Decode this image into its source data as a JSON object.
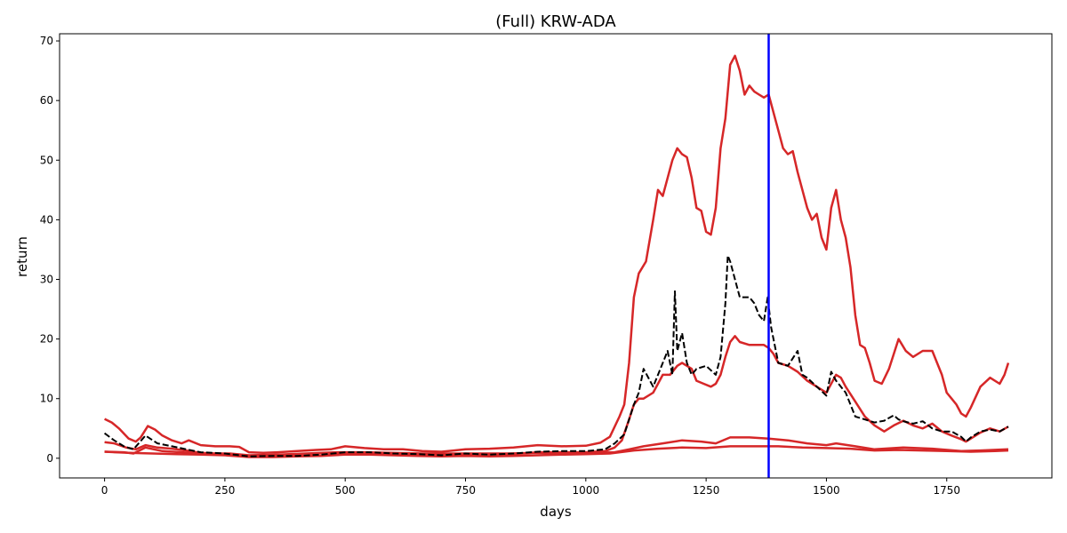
{
  "chart_data": {
    "type": "line",
    "title": "(Full) KRW-ADA",
    "xlabel": "days",
    "ylabel": "return",
    "xlim": [
      -93.5,
      1968.5
    ],
    "ylim": [
      -3.3,
      71.2
    ],
    "xticks": [
      0,
      250,
      500,
      750,
      1000,
      1250,
      1500,
      1750
    ],
    "yticks": [
      0,
      10,
      20,
      30,
      40,
      50,
      60,
      70
    ],
    "grid": false,
    "legend": "none",
    "vline": {
      "x": 1380,
      "color": "#0000ff"
    },
    "series": [
      {
        "style": "dashed",
        "color": "#000000",
        "x": [
          0,
          20,
          40,
          60,
          85,
          110,
          140,
          170,
          200,
          250,
          300,
          350,
          400,
          450,
          500,
          550,
          600,
          650,
          700,
          750,
          800,
          850,
          900,
          950,
          1000,
          1040,
          1060,
          1080,
          1100,
          1110,
          1120,
          1140,
          1160,
          1170,
          1180,
          1185,
          1190,
          1200,
          1210,
          1220,
          1230,
          1250,
          1270,
          1280,
          1290,
          1295,
          1300,
          1310,
          1320,
          1340,
          1350,
          1360,
          1370,
          1378,
          1385,
          1400,
          1420,
          1440,
          1450,
          1460,
          1480,
          1500,
          1510,
          1520,
          1540,
          1560,
          1580,
          1600,
          1620,
          1640,
          1650,
          1660,
          1680,
          1700,
          1720,
          1740,
          1760,
          1780,
          1790,
          1800,
          1820,
          1840,
          1860,
          1878
        ],
        "y": [
          4.2,
          3.0,
          2.0,
          1.5,
          3.8,
          2.5,
          2.0,
          1.5,
          1.0,
          0.8,
          0.3,
          0.4,
          0.4,
          0.6,
          1.0,
          1.0,
          0.8,
          0.7,
          0.5,
          0.8,
          0.6,
          0.8,
          1.1,
          1.2,
          1.2,
          1.5,
          2.5,
          4.0,
          9.0,
          11.0,
          15.0,
          12.0,
          16.0,
          18.0,
          14.0,
          28.0,
          18.0,
          21.0,
          16.0,
          14.0,
          15.0,
          15.5,
          14.0,
          17.0,
          26.0,
          34.0,
          33.0,
          30.0,
          27.0,
          27.0,
          26.0,
          24.0,
          23.0,
          27.0,
          22.0,
          16.0,
          15.5,
          18.0,
          14.0,
          13.5,
          12.0,
          10.5,
          14.5,
          13.0,
          11.0,
          7.0,
          6.5,
          6.0,
          6.3,
          7.2,
          6.5,
          6.2,
          5.8,
          6.2,
          5.0,
          4.5,
          4.5,
          3.6,
          2.8,
          3.5,
          4.5,
          4.8,
          4.5,
          5.3
        ]
      },
      {
        "style": "solid",
        "color": "#d62728",
        "x": [
          0,
          15,
          30,
          50,
          65,
          75,
          90,
          105,
          120,
          140,
          160,
          175,
          200,
          230,
          260,
          280,
          300,
          330,
          360,
          400,
          440,
          470,
          500,
          540,
          580,
          620,
          660,
          700,
          750,
          800,
          850,
          900,
          950,
          1000,
          1030,
          1050,
          1070,
          1080,
          1090,
          1100,
          1110,
          1125,
          1140,
          1150,
          1160,
          1170,
          1180,
          1190,
          1200,
          1210,
          1220,
          1230,
          1240,
          1250,
          1260,
          1270,
          1280,
          1290,
          1300,
          1310,
          1320,
          1330,
          1340,
          1350,
          1360,
          1370,
          1380,
          1390,
          1400,
          1410,
          1420,
          1430,
          1440,
          1450,
          1460,
          1470,
          1480,
          1490,
          1500,
          1510,
          1520,
          1530,
          1540,
          1550,
          1560,
          1570,
          1580,
          1590,
          1600,
          1615,
          1630,
          1650,
          1665,
          1680,
          1700,
          1720,
          1730,
          1740,
          1750,
          1760,
          1770,
          1780,
          1790,
          1800,
          1820,
          1840,
          1860,
          1870,
          1878
        ],
        "y": [
          6.6,
          6.0,
          5.0,
          3.3,
          2.8,
          3.5,
          5.4,
          4.8,
          3.8,
          3.0,
          2.5,
          3.0,
          2.2,
          2.0,
          2.0,
          1.9,
          1.0,
          0.9,
          1.0,
          1.2,
          1.4,
          1.5,
          2.0,
          1.7,
          1.5,
          1.5,
          1.2,
          1.1,
          1.5,
          1.6,
          1.8,
          2.2,
          2.0,
          2.1,
          2.6,
          3.6,
          7.0,
          9.0,
          16.0,
          27.0,
          31.0,
          33.0,
          40.0,
          45.0,
          44.0,
          47.0,
          50.0,
          52.0,
          51.0,
          50.5,
          47.0,
          42.0,
          41.5,
          38.0,
          37.5,
          42.0,
          52.0,
          57.0,
          66.0,
          67.5,
          65.0,
          61.0,
          62.5,
          61.5,
          61.0,
          60.5,
          61.0,
          58.0,
          55.0,
          52.0,
          51.0,
          51.5,
          48.0,
          45.0,
          42.0,
          40.0,
          41.0,
          37.0,
          35.0,
          42.0,
          45.0,
          40.0,
          37.0,
          32.0,
          24.0,
          19.0,
          18.5,
          16.0,
          13.0,
          12.5,
          15.0,
          20.0,
          18.0,
          17.0,
          18.0,
          18.0,
          16.0,
          14.0,
          11.0,
          10.0,
          9.0,
          7.5,
          7.0,
          8.5,
          12.0,
          13.5,
          12.5,
          14.0,
          16.0
        ]
      },
      {
        "style": "solid",
        "color": "#d62728",
        "x": [
          0,
          20,
          45,
          65,
          85,
          110,
          140,
          170,
          200,
          250,
          300,
          350,
          400,
          450,
          500,
          550,
          600,
          650,
          700,
          750,
          800,
          850,
          900,
          950,
          1000,
          1040,
          1060,
          1075,
          1090,
          1100,
          1110,
          1120,
          1140,
          1150,
          1160,
          1175,
          1190,
          1200,
          1210,
          1220,
          1230,
          1245,
          1260,
          1270,
          1280,
          1290,
          1300,
          1310,
          1320,
          1340,
          1360,
          1370,
          1380,
          1390,
          1400,
          1420,
          1440,
          1460,
          1480,
          1500,
          1510,
          1520,
          1530,
          1540,
          1560,
          1580,
          1600,
          1620,
          1640,
          1660,
          1680,
          1700,
          1720,
          1740,
          1760,
          1780,
          1790,
          1800,
          1820,
          1840,
          1860,
          1878
        ],
        "y": [
          2.7,
          2.5,
          1.8,
          1.5,
          2.2,
          1.8,
          1.6,
          1.3,
          0.9,
          0.7,
          0.3,
          0.3,
          0.4,
          0.5,
          0.8,
          0.8,
          0.7,
          0.6,
          0.5,
          0.7,
          0.6,
          0.7,
          1.0,
          1.0,
          1.0,
          1.2,
          1.8,
          3.0,
          6.5,
          9.0,
          10.0,
          10.0,
          11.0,
          12.5,
          14.0,
          14.0,
          15.5,
          16.0,
          15.5,
          15.0,
          13.0,
          12.5,
          12.0,
          12.5,
          14.0,
          17.0,
          19.5,
          20.5,
          19.5,
          19.0,
          19.0,
          19.0,
          18.5,
          17.5,
          16.0,
          15.5,
          14.5,
          13.0,
          12.0,
          11.0,
          12.5,
          14.0,
          13.5,
          12.0,
          9.5,
          7.0,
          5.5,
          4.5,
          5.5,
          6.3,
          5.5,
          5.0,
          5.8,
          4.5,
          3.8,
          3.2,
          2.8,
          3.3,
          4.3,
          5.0,
          4.5,
          5.3
        ]
      },
      {
        "style": "solid",
        "color": "#d62728",
        "x": [
          0,
          40,
          60,
          85,
          120,
          160,
          200,
          260,
          300,
          360,
          420,
          480,
          540,
          600,
          660,
          720,
          780,
          840,
          900,
          960,
          1020,
          1060,
          1090,
          1120,
          1160,
          1200,
          1240,
          1270,
          1300,
          1340,
          1380,
          1420,
          1460,
          1500,
          1520,
          1560,
          1600,
          1660,
          1720,
          1780,
          1820,
          1878
        ],
        "y": [
          1.1,
          1.0,
          0.8,
          1.8,
          1.2,
          1.0,
          0.8,
          0.8,
          0.5,
          0.6,
          0.8,
          1.0,
          1.0,
          0.9,
          0.8,
          0.8,
          0.8,
          0.8,
          0.9,
          0.8,
          0.9,
          1.0,
          1.5,
          2.0,
          2.5,
          3.0,
          2.8,
          2.5,
          3.5,
          3.5,
          3.3,
          3.0,
          2.5,
          2.2,
          2.5,
          2.0,
          1.5,
          1.8,
          1.6,
          1.2,
          1.3,
          1.5
        ]
      },
      {
        "style": "solid",
        "color": "#d62728",
        "x": [
          0,
          50,
          100,
          150,
          200,
          250,
          300,
          350,
          400,
          450,
          500,
          550,
          600,
          650,
          700,
          750,
          800,
          850,
          900,
          950,
          1000,
          1050,
          1100,
          1150,
          1200,
          1250,
          1300,
          1350,
          1400,
          1450,
          1500,
          1550,
          1600,
          1650,
          1700,
          1750,
          1800,
          1850,
          1878
        ],
        "y": [
          1.1,
          0.9,
          0.8,
          0.7,
          0.6,
          0.5,
          0.2,
          0.2,
          0.3,
          0.4,
          0.6,
          0.6,
          0.5,
          0.4,
          0.3,
          0.4,
          0.3,
          0.4,
          0.5,
          0.6,
          0.7,
          0.8,
          1.3,
          1.6,
          1.8,
          1.7,
          2.0,
          2.0,
          2.0,
          1.8,
          1.7,
          1.6,
          1.3,
          1.4,
          1.3,
          1.2,
          1.1,
          1.2,
          1.3
        ]
      }
    ]
  }
}
